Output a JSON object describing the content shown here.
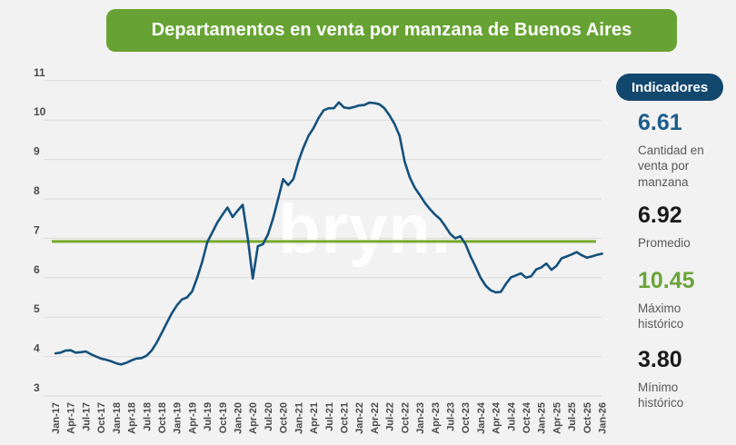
{
  "title": "Departamentos en venta por manzana de Buenos Aires",
  "watermark": "bryn.",
  "indicators": {
    "header": "Indicadores",
    "items": [
      {
        "value": "6.61",
        "label": "Cantidad en venta por manzana",
        "color": "#1b5d8b"
      },
      {
        "value": "6.92",
        "label": "Promedio",
        "color": "#1a1a1a"
      },
      {
        "value": "10.45",
        "label": "Máximo histórico",
        "color": "#6ba43a"
      },
      {
        "value": "3.80",
        "label": "Mínimo histórico",
        "color": "#1a1a1a"
      }
    ]
  },
  "chart_data": {
    "type": "line",
    "title": "Departamentos en venta por manzana de Buenos Aires",
    "frequency": "monthly",
    "x_start": "Jan-17",
    "x_end": "Jan-26",
    "x_tick_labels": [
      "Jan-17",
      "Apr-17",
      "Jul-17",
      "Oct-17",
      "Jan-18",
      "Apr-18",
      "Jul-18",
      "Oct-18",
      "Jan-19",
      "Apr-19",
      "Jul-19",
      "Oct-19",
      "Jan-20",
      "Apr-20",
      "Jul-20",
      "Oct-20",
      "Jan-21",
      "Apr-21",
      "Jul-21",
      "Oct-21",
      "Jan-22",
      "Apr-22",
      "Jul-22",
      "Oct-22",
      "Jan-23",
      "Apr-23",
      "Jul-23",
      "Oct-23",
      "Jan-24",
      "Apr-24",
      "Jul-24",
      "Oct-24",
      "Jan-25",
      "Apr-25",
      "Jul-25",
      "Oct-25",
      "Jan-26"
    ],
    "yticks": [
      3,
      4,
      5,
      6,
      7,
      8,
      9,
      10,
      11
    ],
    "ylim": [
      3,
      11
    ],
    "grid": true,
    "average_line": 6.92,
    "max_value": 10.45,
    "min_value": 3.8,
    "last_value": 6.61,
    "colors": {
      "line": "#15517c",
      "average": "#79aa2e"
    },
    "series": [
      {
        "name": "Cantidad en venta por manzana",
        "values": [
          4.08,
          4.1,
          4.15,
          4.16,
          4.1,
          4.11,
          4.13,
          4.06,
          4.0,
          3.95,
          3.92,
          3.88,
          3.83,
          3.8,
          3.84,
          3.9,
          3.95,
          3.96,
          4.02,
          4.15,
          4.35,
          4.6,
          4.85,
          5.1,
          5.3,
          5.45,
          5.5,
          5.65,
          6.0,
          6.4,
          6.9,
          7.15,
          7.4,
          7.6,
          7.78,
          7.54,
          7.7,
          7.85,
          7.0,
          5.98,
          6.8,
          6.85,
          7.1,
          7.5,
          8.0,
          8.5,
          8.35,
          8.5,
          8.95,
          9.3,
          9.6,
          9.8,
          10.05,
          10.25,
          10.3,
          10.3,
          10.45,
          10.32,
          10.3,
          10.33,
          10.37,
          10.38,
          10.44,
          10.43,
          10.4,
          10.3,
          10.12,
          9.9,
          9.6,
          8.95,
          8.55,
          8.28,
          8.1,
          7.9,
          7.74,
          7.6,
          7.49,
          7.31,
          7.11,
          7.0,
          7.05,
          6.86,
          6.55,
          6.28,
          6.0,
          5.8,
          5.68,
          5.63,
          5.64,
          5.84,
          6.01,
          6.06,
          6.11,
          6.0,
          6.04,
          6.21,
          6.26,
          6.36,
          6.2,
          6.3,
          6.49,
          6.54,
          6.59,
          6.65,
          6.57,
          6.51,
          6.54,
          6.58,
          6.61
        ]
      }
    ]
  }
}
